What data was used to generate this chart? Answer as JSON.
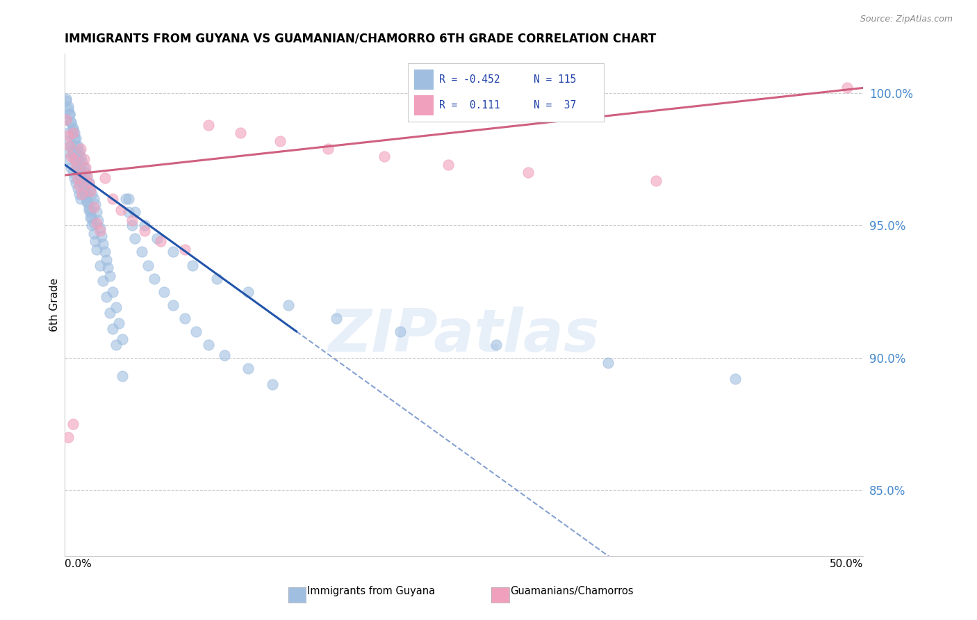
{
  "title": "IMMIGRANTS FROM GUYANA VS GUAMANIAN/CHAMORRO 6TH GRADE CORRELATION CHART",
  "source": "Source: ZipAtlas.com",
  "ylabel": "6th Grade",
  "xlim": [
    0.0,
    0.5
  ],
  "ylim": [
    0.825,
    1.015
  ],
  "yticks": [
    0.85,
    0.9,
    0.95,
    1.0
  ],
  "ytick_labels": [
    "85.0%",
    "90.0%",
    "95.0%",
    "100.0%"
  ],
  "blue_color": "#A0BEE0",
  "pink_color": "#F0A0BC",
  "trend_blue": "#2255AA",
  "trend_pink": "#D06080",
  "watermark": "ZIPatlas",
  "blue_x": [
    0.001,
    0.001,
    0.002,
    0.002,
    0.002,
    0.003,
    0.003,
    0.003,
    0.004,
    0.004,
    0.004,
    0.005,
    0.005,
    0.005,
    0.006,
    0.006,
    0.006,
    0.007,
    0.007,
    0.007,
    0.008,
    0.008,
    0.008,
    0.009,
    0.009,
    0.009,
    0.01,
    0.01,
    0.01,
    0.011,
    0.011,
    0.012,
    0.012,
    0.013,
    0.013,
    0.014,
    0.014,
    0.015,
    0.015,
    0.016,
    0.016,
    0.017,
    0.017,
    0.018,
    0.018,
    0.019,
    0.02,
    0.021,
    0.022,
    0.023,
    0.024,
    0.025,
    0.026,
    0.027,
    0.028,
    0.03,
    0.032,
    0.034,
    0.036,
    0.038,
    0.04,
    0.042,
    0.044,
    0.048,
    0.052,
    0.056,
    0.062,
    0.068,
    0.075,
    0.082,
    0.09,
    0.1,
    0.115,
    0.13,
    0.001,
    0.002,
    0.003,
    0.004,
    0.005,
    0.006,
    0.007,
    0.008,
    0.009,
    0.01,
    0.011,
    0.012,
    0.013,
    0.014,
    0.015,
    0.016,
    0.017,
    0.018,
    0.019,
    0.02,
    0.022,
    0.024,
    0.026,
    0.028,
    0.03,
    0.032,
    0.036,
    0.04,
    0.044,
    0.05,
    0.058,
    0.068,
    0.08,
    0.095,
    0.115,
    0.14,
    0.17,
    0.21,
    0.27,
    0.34,
    0.42
  ],
  "blue_y": [
    0.997,
    0.99,
    0.994,
    0.985,
    0.978,
    0.992,
    0.982,
    0.975,
    0.989,
    0.98,
    0.972,
    0.987,
    0.978,
    0.97,
    0.985,
    0.976,
    0.968,
    0.983,
    0.974,
    0.966,
    0.98,
    0.972,
    0.964,
    0.978,
    0.97,
    0.962,
    0.976,
    0.968,
    0.96,
    0.974,
    0.966,
    0.972,
    0.963,
    0.97,
    0.961,
    0.968,
    0.959,
    0.966,
    0.957,
    0.964,
    0.955,
    0.962,
    0.953,
    0.96,
    0.951,
    0.958,
    0.955,
    0.952,
    0.949,
    0.946,
    0.943,
    0.94,
    0.937,
    0.934,
    0.931,
    0.925,
    0.919,
    0.913,
    0.907,
    0.96,
    0.955,
    0.95,
    0.945,
    0.94,
    0.935,
    0.93,
    0.925,
    0.92,
    0.915,
    0.91,
    0.905,
    0.901,
    0.896,
    0.89,
    0.998,
    0.995,
    0.992,
    0.989,
    0.986,
    0.983,
    0.98,
    0.977,
    0.974,
    0.971,
    0.968,
    0.965,
    0.962,
    0.959,
    0.956,
    0.953,
    0.95,
    0.947,
    0.944,
    0.941,
    0.935,
    0.929,
    0.923,
    0.917,
    0.911,
    0.905,
    0.893,
    0.96,
    0.955,
    0.95,
    0.945,
    0.94,
    0.935,
    0.93,
    0.925,
    0.92,
    0.915,
    0.91,
    0.905,
    0.898,
    0.892
  ],
  "pink_x": [
    0.001,
    0.002,
    0.003,
    0.004,
    0.005,
    0.006,
    0.007,
    0.008,
    0.009,
    0.01,
    0.011,
    0.012,
    0.013,
    0.014,
    0.015,
    0.016,
    0.018,
    0.02,
    0.022,
    0.025,
    0.03,
    0.035,
    0.042,
    0.05,
    0.06,
    0.075,
    0.09,
    0.11,
    0.135,
    0.165,
    0.2,
    0.24,
    0.29,
    0.37,
    0.49,
    0.002,
    0.005
  ],
  "pink_y": [
    0.99,
    0.984,
    0.98,
    0.976,
    0.985,
    0.975,
    0.972,
    0.968,
    0.965,
    0.979,
    0.962,
    0.975,
    0.972,
    0.969,
    0.966,
    0.963,
    0.957,
    0.951,
    0.948,
    0.968,
    0.96,
    0.956,
    0.952,
    0.948,
    0.944,
    0.941,
    0.988,
    0.985,
    0.982,
    0.979,
    0.976,
    0.973,
    0.97,
    0.967,
    1.002,
    0.87,
    0.875
  ],
  "trend_blue_x0": 0.0,
  "trend_blue_y0": 0.973,
  "trend_blue_x1": 0.145,
  "trend_blue_y1": 0.91,
  "trend_blue_solid_end": 0.145,
  "trend_pink_x0": 0.0,
  "trend_pink_y0": 0.969,
  "trend_pink_x1": 0.5,
  "trend_pink_y1": 1.002
}
